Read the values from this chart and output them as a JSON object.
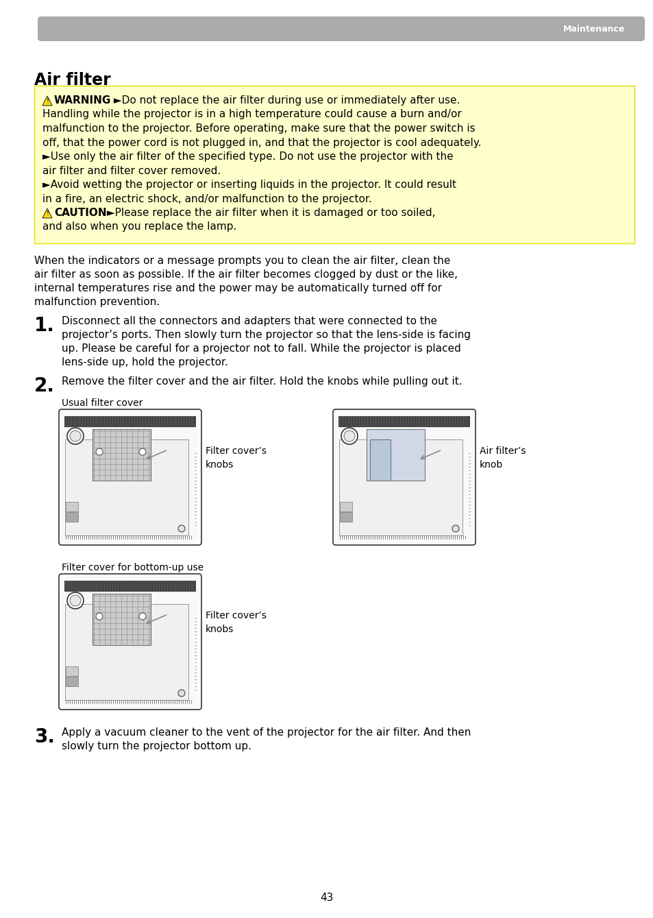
{
  "page_bg": "#ffffff",
  "header_bar_color": "#b0b0b0",
  "header_text": "Maintenance",
  "header_text_color": "#ffffff",
  "title": "Air filter",
  "warning_box_bg": "#ffffcc",
  "warning_label": "⚠WARNING",
  "caution_label": "⚠CAUTION",
  "warning_lines": [
    [
      "⚠WARNING",
      " ►Do not replace the air filter during use or immediately after use."
    ],
    [
      "",
      "Handling while the projector is in a high temperature could cause a burn and/or"
    ],
    [
      "",
      "malfunction to the projector. Before operating, make sure that the power switch is"
    ],
    [
      "",
      "off, that the power cord is not plugged in, and that the projector is cool adequately."
    ],
    [
      "",
      "►Use only the air filter of the specified type. Do not use the projector with the"
    ],
    [
      "",
      "air filter and filter cover removed."
    ],
    [
      "",
      "►Avoid wetting the projector or inserting liquids in the projector. It could result"
    ],
    [
      "",
      "in a fire, an electric shock, and/or malfunction to the projector."
    ],
    [
      "⚠CAUTION",
      " ►Please replace the air filter when it is damaged or too soiled,"
    ],
    [
      "",
      "and also when you replace the lamp."
    ]
  ],
  "para1": [
    "When the indicators or a message prompts you to clean the air filter, clean the",
    "air filter as soon as possible. If the air filter becomes clogged by dust or the like,",
    "internal temperatures rise and the power may be automatically turned off for",
    "malfunction prevention."
  ],
  "step1_lines": [
    "Disconnect all the connectors and adapters that were connected to the",
    "projector’s ports. Then slowly turn the projector so that the lens-side is facing",
    "up. Please be careful for a projector not to fall. While the projector is placed",
    "lens-side up, hold the projector."
  ],
  "step2_line": "Remove the filter cover and the air filter. Hold the knobs while pulling out it.",
  "label_usual": "Usual filter cover",
  "label_filter_knobs": "Filter cover’s\nknobs",
  "label_air_knob": "Air filter’s\nknob",
  "label_bottom_up": "Filter cover for bottom-up use",
  "label_filter_knobs2": "Filter cover’s\nknobs",
  "step3_lines": [
    "Apply a vacuum cleaner to the vent of the projector for the air filter. And then",
    "slowly turn the projector bottom up."
  ],
  "page_num": "43"
}
